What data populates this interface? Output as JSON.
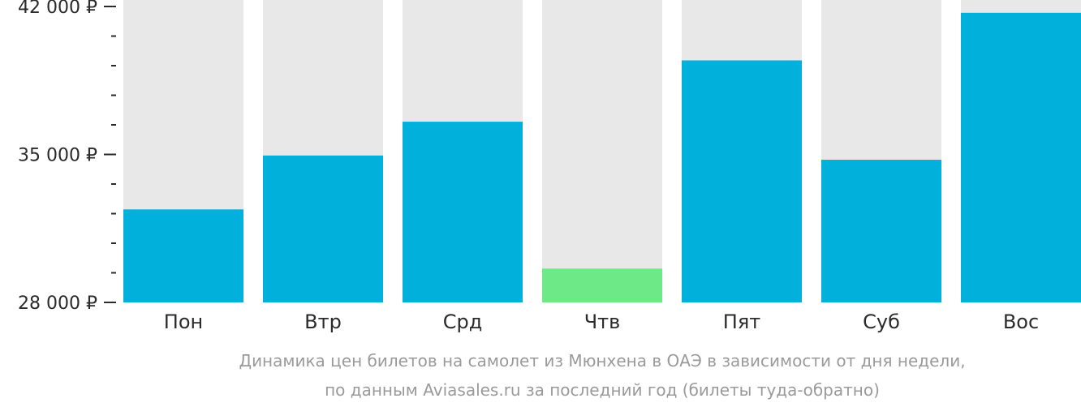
{
  "colors": {
    "bar": "#02b0dc",
    "bar_min": "#6de987",
    "track": "#e8e8e8",
    "axis": "#2b2b2b",
    "caption": "#9a9a9a"
  },
  "chart_data": {
    "type": "bar",
    "categories": [
      "Пон",
      "Втр",
      "Срд",
      "Чтв",
      "Пят",
      "Суб",
      "Вос"
    ],
    "values": [
      32400,
      34950,
      36550,
      29600,
      39450,
      34750,
      41700
    ],
    "highlight_index": 3,
    "ylim": [
      28000,
      42000
    ],
    "major_ticks": [
      {
        "value": 28000,
        "label": "28 000 ₽"
      },
      {
        "value": 35000,
        "label": "35 000 ₽"
      },
      {
        "value": 42000,
        "label": "42 000 ₽"
      }
    ],
    "minor_tick_step": 1400,
    "grid": false,
    "legend": "none",
    "caption_lines": [
      "Динамика цен билетов на самолет из Мюнхена в ОАЭ в зависимости от дня недели,",
      "по данным Aviasales.ru за последний год (билеты туда-обратно)"
    ]
  }
}
